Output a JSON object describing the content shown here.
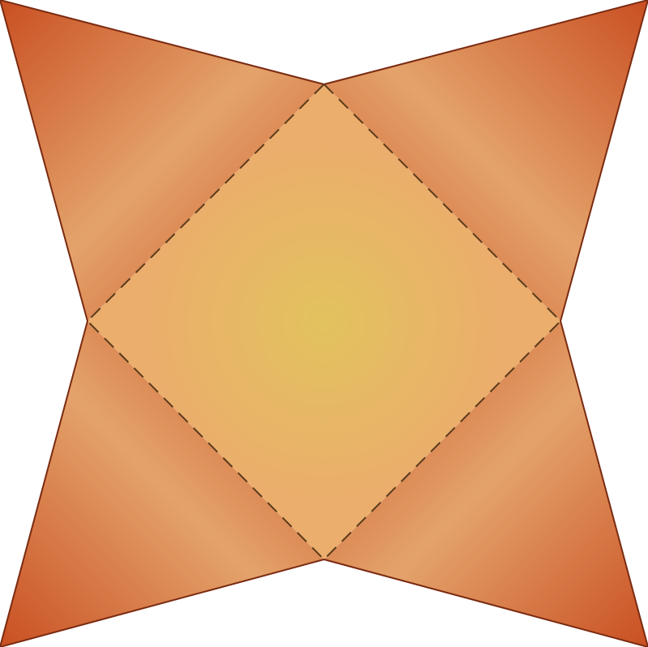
{
  "figure": {
    "description_free": true,
    "colors": {
      "flap_dark": "#c94f22",
      "flap_mid": "#d9703f",
      "flap_light": "#e4a36b",
      "edge": "#7a2a10",
      "center_edge": "#e0944f",
      "center_glow": "#e2c25e",
      "center_base": "#ebae6c",
      "fold_line": "#5a3b1c",
      "background": "#ffffff"
    }
  }
}
